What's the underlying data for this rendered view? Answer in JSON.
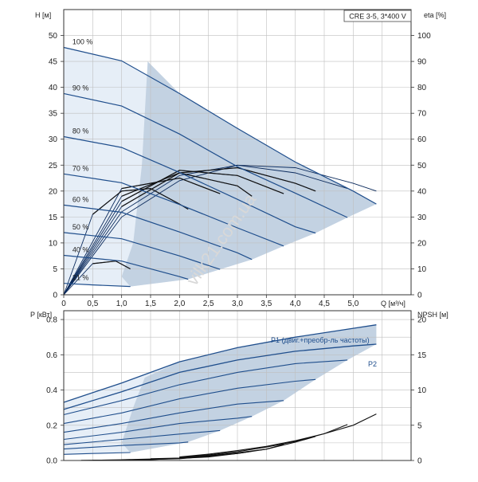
{
  "chart_data": [
    {
      "type": "line",
      "title": "CRE 3-5, 3*400 V",
      "xlabel": "Q [м³/ч]",
      "ylabel": "H [м]",
      "y2label": "eta [%]",
      "xlim": [
        0,
        6
      ],
      "ylim": [
        0,
        55
      ],
      "y2lim": [
        0,
        110
      ],
      "x_ticks": [
        "0",
        "0,5",
        "1,0",
        "1,5",
        "2,0",
        "2,5",
        "3,0",
        "3,5",
        "4,0",
        "4,5",
        "5,0"
      ],
      "y_ticks": [
        "0",
        "5",
        "10",
        "15",
        "20",
        "25",
        "30",
        "35",
        "40",
        "45",
        "50"
      ],
      "y2_ticks": [
        "0",
        "10",
        "20",
        "30",
        "40",
        "50",
        "60",
        "70",
        "80",
        "90",
        "100"
      ],
      "grid": true,
      "series": [
        {
          "name": "100 %",
          "x": [
            0,
            1,
            2,
            3,
            4,
            5,
            5.4
          ],
          "values": [
            47.7,
            45.1,
            38.8,
            32.1,
            25.6,
            20.0,
            17.5
          ]
        },
        {
          "name": "90 %",
          "x": [
            0,
            1,
            2,
            3,
            4,
            4.9
          ],
          "values": [
            38.8,
            36.4,
            31.0,
            24.7,
            19.6,
            14.9
          ]
        },
        {
          "name": "80 %",
          "x": [
            0,
            1,
            2,
            3,
            4,
            4.35
          ],
          "values": [
            30.5,
            28.4,
            23.6,
            18.4,
            13.1,
            11.9
          ]
        },
        {
          "name": "70 %",
          "x": [
            0,
            1,
            2,
            3,
            3.8
          ],
          "values": [
            23.3,
            21.6,
            17.4,
            12.9,
            9.4
          ]
        },
        {
          "name": "60 %",
          "x": [
            0,
            1,
            2,
            3,
            3.25
          ],
          "values": [
            17.3,
            15.9,
            12.1,
            8.1,
            6.8
          ]
        },
        {
          "name": "50 %",
          "x": [
            0,
            1,
            2,
            2.7
          ],
          "values": [
            12.0,
            10.8,
            7.5,
            4.9
          ]
        },
        {
          "name": "40 %",
          "x": [
            0,
            1,
            2,
            2.15
          ],
          "values": [
            7.6,
            6.5,
            3.5,
            3.0
          ]
        },
        {
          "name": "21 %",
          "x": [
            0,
            0.5,
            1.15
          ],
          "values": [
            2.2,
            1.9,
            1.6
          ]
        }
      ],
      "eta_curves": [
        {
          "x": [
            0,
            1,
            2,
            3,
            4,
            5,
            5.4
          ],
          "values": [
            0,
            30,
            44,
            50,
            49,
            43,
            40
          ]
        },
        {
          "x": [
            0,
            1,
            2,
            3,
            4,
            4.9
          ],
          "values": [
            0,
            32,
            46,
            50,
            47,
            41
          ]
        },
        {
          "x": [
            0,
            1,
            2,
            3,
            4,
            4.35
          ],
          "values": [
            0,
            34,
            47,
            49,
            43,
            40
          ]
        },
        {
          "x": [
            0,
            1,
            2,
            3,
            3.8
          ],
          "values": [
            0,
            36,
            48,
            46,
            39
          ]
        },
        {
          "x": [
            0,
            1,
            2,
            3,
            3.25
          ],
          "values": [
            0,
            38,
            47,
            42,
            38
          ]
        },
        {
          "x": [
            0,
            1,
            2,
            2.7
          ],
          "values": [
            0,
            41,
            45,
            39
          ]
        },
        {
          "x": [
            0,
            0.5,
            1,
            1.5,
            2,
            2.15
          ],
          "values": [
            0,
            31,
            40,
            41,
            35,
            33
          ]
        },
        {
          "x": [
            0,
            0.5,
            0.9,
            1.15
          ],
          "values": [
            0,
            12,
            13,
            10
          ]
        }
      ]
    },
    {
      "type": "line",
      "xlabel": "",
      "ylabel": "P [кВт]",
      "y2label": "NPSH [м]",
      "xlim": [
        0,
        6
      ],
      "ylim": [
        0,
        0.85
      ],
      "y2lim": [
        0,
        21.25
      ],
      "y_ticks": [
        "0.0",
        "0.2",
        "0.4",
        "0.6",
        "0.8"
      ],
      "y2_ticks": [
        "0",
        "5",
        "10",
        "15",
        "20"
      ],
      "grid": true,
      "annotations": [
        "P1 (двиг.+преобр-ль частоты)",
        "P2"
      ],
      "series": [
        {
          "name": "P1 (двиг.+преобр-ль частоты)",
          "x": [
            0,
            1,
            2,
            3,
            4,
            5,
            5.4
          ],
          "values": [
            0.33,
            0.44,
            0.56,
            0.64,
            0.7,
            0.75,
            0.77
          ]
        },
        {
          "name": "P2",
          "x": [
            0,
            1,
            2,
            3,
            4,
            5,
            5.4
          ],
          "values": [
            0.29,
            0.39,
            0.5,
            0.57,
            0.62,
            0.65,
            0.66
          ]
        }
      ],
      "p1_curves": [
        {
          "x": [
            0,
            1,
            2,
            3,
            4,
            4.9
          ],
          "values": [
            0.26,
            0.34,
            0.43,
            0.5,
            0.55,
            0.57
          ]
        },
        {
          "x": [
            0,
            1,
            2,
            3,
            4,
            4.35
          ],
          "values": [
            0.21,
            0.27,
            0.35,
            0.41,
            0.45,
            0.46
          ]
        },
        {
          "x": [
            0,
            1,
            2,
            3,
            3.8
          ],
          "values": [
            0.16,
            0.21,
            0.27,
            0.32,
            0.34
          ]
        },
        {
          "x": [
            0,
            1,
            2,
            3,
            3.25
          ],
          "values": [
            0.12,
            0.16,
            0.21,
            0.24,
            0.25
          ]
        },
        {
          "x": [
            0,
            1,
            2,
            2.7
          ],
          "values": [
            0.09,
            0.12,
            0.15,
            0.17
          ]
        },
        {
          "x": [
            0,
            1,
            2,
            2.15
          ],
          "values": [
            0.065,
            0.085,
            0.1,
            0.105
          ]
        },
        {
          "x": [
            0,
            0.5,
            1.15
          ],
          "values": [
            0.035,
            0.04,
            0.045
          ]
        }
      ],
      "npsh_curves": [
        {
          "x": [
            2,
            2.5,
            3,
            3.5,
            4,
            4.5,
            5.0,
            5.4
          ],
          "values": [
            0.5,
            0.9,
            1.4,
            2.0,
            2.8,
            3.8,
            5.0,
            6.6
          ]
        },
        {
          "x": [
            2,
            2.5,
            3,
            3.5,
            4,
            4.5,
            4.9
          ],
          "values": [
            0.45,
            0.8,
            1.25,
            1.9,
            2.7,
            3.8,
            5.1
          ]
        },
        {
          "x": [
            2,
            2.5,
            3,
            3.5,
            4,
            4.35
          ],
          "values": [
            0.4,
            0.7,
            1.1,
            1.6,
            2.6,
            3.4
          ]
        },
        {
          "x": [
            1.5,
            2,
            2.5,
            3,
            3.5,
            3.8
          ],
          "values": [
            0.25,
            0.35,
            0.6,
            1.0,
            1.6,
            2.3
          ]
        },
        {
          "x": [
            1,
            1.5,
            2,
            2.5,
            3,
            3.25
          ],
          "values": [
            0.1,
            0.2,
            0.3,
            0.5,
            1.0,
            1.3
          ]
        },
        {
          "x": [
            0.5,
            1,
            1.5,
            2,
            2.5,
            2.7
          ],
          "values": [
            0.05,
            0.08,
            0.15,
            0.25,
            0.6,
            0.8
          ]
        },
        {
          "x": [
            0.5,
            1,
            1.5,
            2,
            2.15
          ],
          "values": [
            0.04,
            0.06,
            0.12,
            0.3,
            0.45
          ]
        },
        {
          "x": [
            0.3,
            0.6,
            0.9,
            1.15
          ],
          "values": [
            0.02,
            0.04,
            0.08,
            0.12
          ]
        }
      ]
    }
  ],
  "watermark": "vilk21.com.ua",
  "colors": {
    "curve": "#1f4e8c",
    "thin_curve": "#0b2a5c",
    "black_curve": "#111111",
    "band_dark": "#c3d2e2",
    "band_light": "#e6eef7",
    "grid": "#bfbfbf"
  }
}
